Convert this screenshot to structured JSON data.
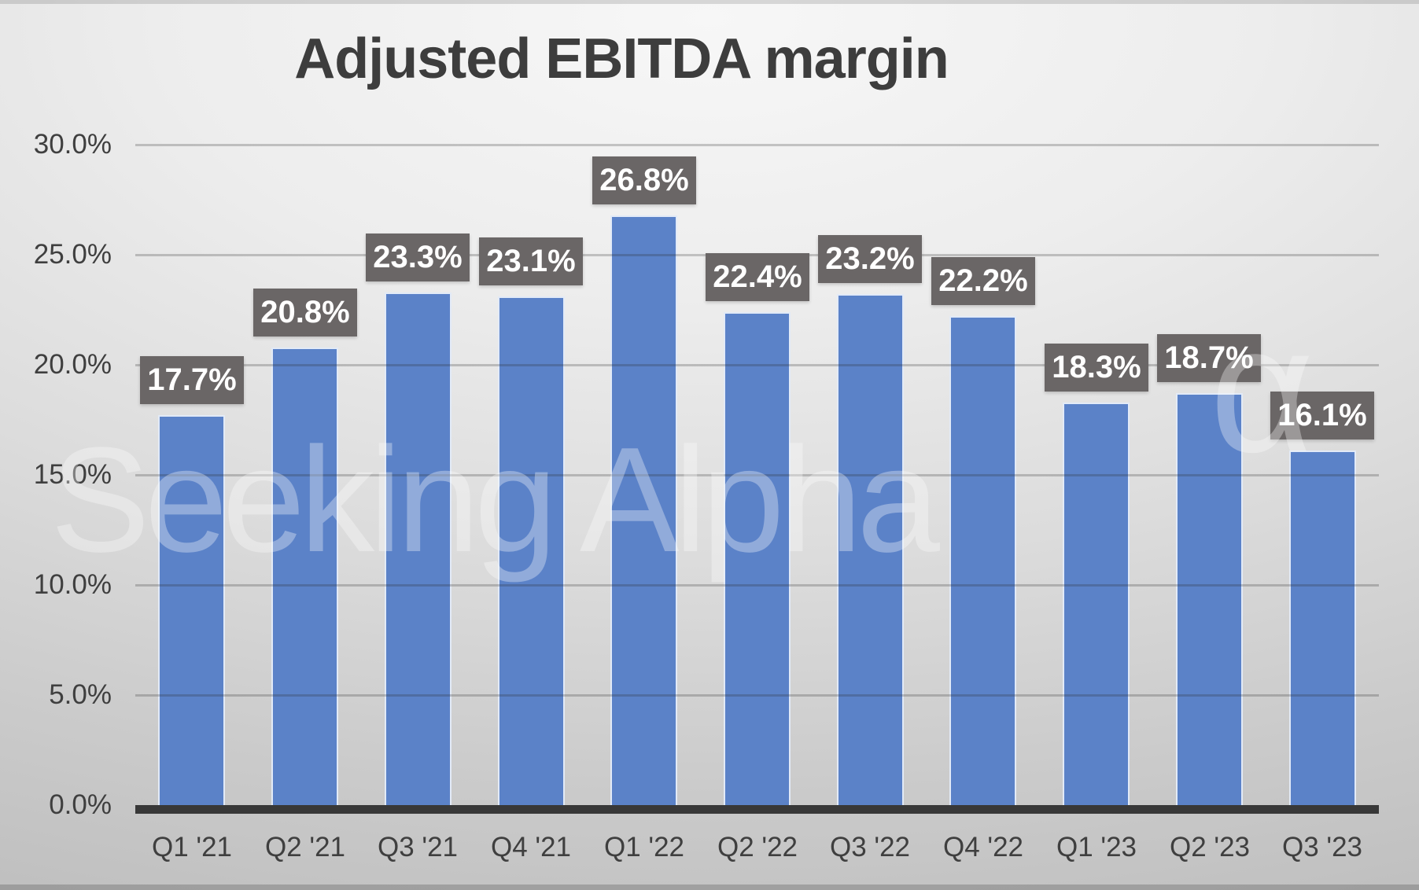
{
  "title": "Adjusted EBITDA margin",
  "watermark": {
    "text": "Seeking Alpha",
    "superscript": "α"
  },
  "chart_data": {
    "type": "bar",
    "title": "Adjusted EBITDA margin",
    "categories": [
      "Q1 '21",
      "Q2 '21",
      "Q3 '21",
      "Q4 '21",
      "Q1 '22",
      "Q2 '22",
      "Q3 '22",
      "Q4 '22",
      "Q1 '23",
      "Q2 '23",
      "Q3 '23"
    ],
    "values": [
      17.7,
      20.8,
      23.3,
      23.1,
      26.8,
      22.4,
      23.2,
      22.2,
      18.3,
      18.7,
      16.1
    ],
    "data_labels": [
      "17.7%",
      "20.8%",
      "23.3%",
      "23.1%",
      "26.8%",
      "22.4%",
      "23.2%",
      "22.2%",
      "18.3%",
      "18.7%",
      "16.1%"
    ],
    "xlabel": "",
    "ylabel": "",
    "ylim": [
      0,
      30
    ],
    "ytick_step": 5,
    "ytick_labels": [
      "30.0%",
      "25.0%",
      "20.0%",
      "15.0%",
      "10.0%",
      "5.0%",
      "0.0%"
    ],
    "grid": true,
    "legend": false,
    "colors": {
      "bar": "#5b82c8",
      "bar_edge": "#e2eaf7",
      "data_label_bg": "#6a6666",
      "data_label_text": "#ffffff",
      "title_text": "#3d3d3d",
      "axis_text": "#3f3f3f",
      "axis_line": "#383838",
      "gridline": "rgba(40,40,40,0.24)"
    }
  }
}
